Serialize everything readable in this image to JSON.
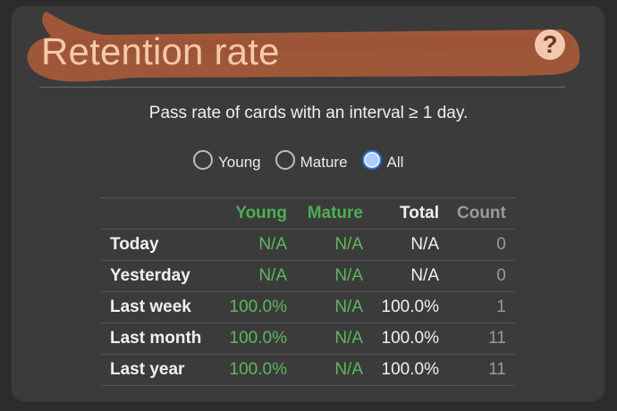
{
  "header": {
    "title": "Retention rate",
    "help_symbol": "?",
    "smear_color": "#a3583a"
  },
  "subtitle": "Pass rate of cards with an interval ≥ 1 day.",
  "radios": [
    {
      "label": "Young",
      "checked": false
    },
    {
      "label": "Mature",
      "checked": false
    },
    {
      "label": "All",
      "checked": true
    }
  ],
  "table": {
    "headers": [
      "",
      "Young",
      "Mature",
      "Total",
      "Count"
    ],
    "rows": [
      {
        "label": "Today",
        "young": "N/A",
        "mature": "N/A",
        "total": "N/A",
        "count": "0"
      },
      {
        "label": "Yesterday",
        "young": "N/A",
        "mature": "N/A",
        "total": "N/A",
        "count": "0"
      },
      {
        "label": "Last week",
        "young": "100.0%",
        "mature": "N/A",
        "total": "100.0%",
        "count": "1"
      },
      {
        "label": "Last month",
        "young": "100.0%",
        "mature": "N/A",
        "total": "100.0%",
        "count": "11"
      },
      {
        "label": "Last year",
        "young": "100.0%",
        "mature": "N/A",
        "total": "100.0%",
        "count": "11"
      }
    ]
  },
  "colors": {
    "background": "#3b3b3b",
    "green": "#5cb85c",
    "title": "#f6c9a8"
  }
}
